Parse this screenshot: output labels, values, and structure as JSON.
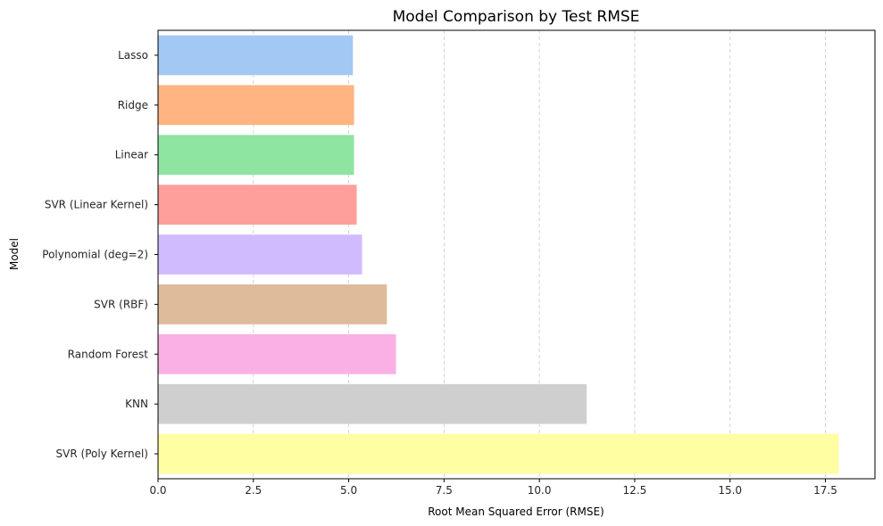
{
  "chart_data": {
    "type": "bar",
    "orientation": "horizontal",
    "title": "Model Comparison by Test RMSE",
    "xlabel": "Root Mean Squared Error (RMSE)",
    "ylabel": "Model",
    "categories": [
      "Lasso",
      "Ridge",
      "Linear",
      "SVR (Linear Kernel)",
      "Polynomial (deg=2)",
      "SVR (RBF)",
      "Random Forest",
      "KNN",
      "SVR (Poly Kernel)"
    ],
    "values": [
      5.11,
      5.14,
      5.14,
      5.21,
      5.35,
      6.0,
      6.24,
      11.24,
      17.85
    ],
    "colors": [
      "#a1c9f4",
      "#ffb482",
      "#8de5a1",
      "#ff9f9b",
      "#d0bbff",
      "#debb9b",
      "#fab0e4",
      "#cfcfcf",
      "#fffea3"
    ],
    "xlim": [
      0,
      18.8
    ],
    "xticks": [
      0.0,
      2.5,
      5.0,
      7.5,
      10.0,
      12.5,
      15.0,
      17.5
    ],
    "xtick_labels": [
      "0.0",
      "2.5",
      "5.0",
      "7.5",
      "10.0",
      "12.5",
      "15.0",
      "17.5"
    ],
    "grid": "vertical dashed"
  }
}
